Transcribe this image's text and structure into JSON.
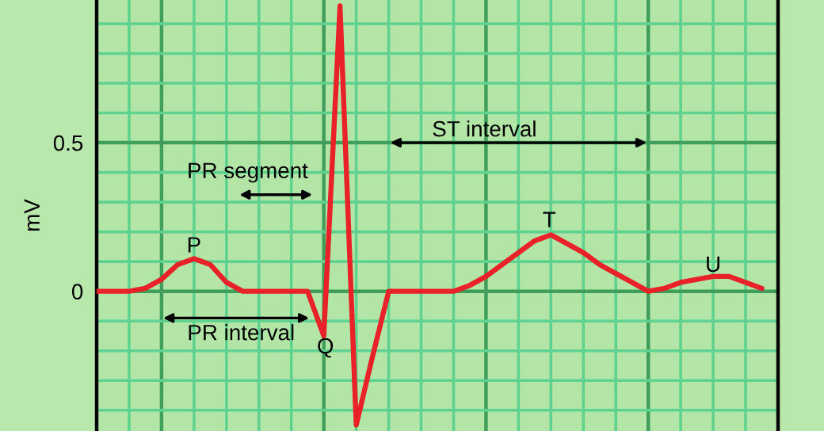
{
  "chart_data": {
    "type": "line",
    "ylabel": "mV",
    "categories": [
      null,
      null,
      null,
      null,
      null,
      null,
      null,
      null,
      null,
      null,
      null,
      null,
      null,
      null,
      null,
      null,
      null,
      null,
      null,
      null,
      null,
      null,
      null,
      null,
      null,
      null,
      null,
      null,
      null,
      null,
      null,
      null,
      null,
      null,
      null,
      null,
      null,
      null,
      null,
      null,
      null,
      null,
      null
    ],
    "series": [
      {
        "color": "#e82228",
        "values": [
          0,
          0,
          0,
          0.01,
          0.04,
          0.09,
          0.11,
          0.09,
          0.03,
          0,
          0,
          0,
          0,
          0,
          -0.15,
          0.96,
          -0.45,
          -0.22,
          0,
          0,
          0,
          0,
          0,
          0.02,
          0.05,
          0.09,
          0.13,
          0.17,
          0.19,
          0.16,
          0.13,
          0.09,
          0.06,
          0.03,
          0,
          0.01,
          0.03,
          0.04,
          0.05,
          0.05,
          0.03,
          0.01,
          null
        ]
      }
    ],
    "ylim": [
      -0.47,
      0.98
    ],
    "yticks": [
      {
        "value": -0.4,
        "label": null
      },
      {
        "value": -0.3,
        "label": null
      },
      {
        "value": -0.2,
        "label": null
      },
      {
        "value": -0.1,
        "label": null
      },
      0,
      {
        "value": 0.1,
        "label": null
      },
      {
        "value": 0.2,
        "label": null
      },
      {
        "value": 0.3,
        "label": null
      },
      {
        "value": 0.4,
        "label": null
      },
      0.5,
      {
        "value": 0.6,
        "label": null
      },
      {
        "value": 0.7,
        "label": null
      },
      {
        "value": 0.8,
        "label": null
      },
      {
        "value": 0.9,
        "label": null
      }
    ],
    "grid": true,
    "marker": "none",
    "line_style": "solid",
    "annotations": [
      "P",
      "Q",
      "T",
      "U",
      "PR segment",
      "PR interval",
      "ST interval"
    ]
  }
}
